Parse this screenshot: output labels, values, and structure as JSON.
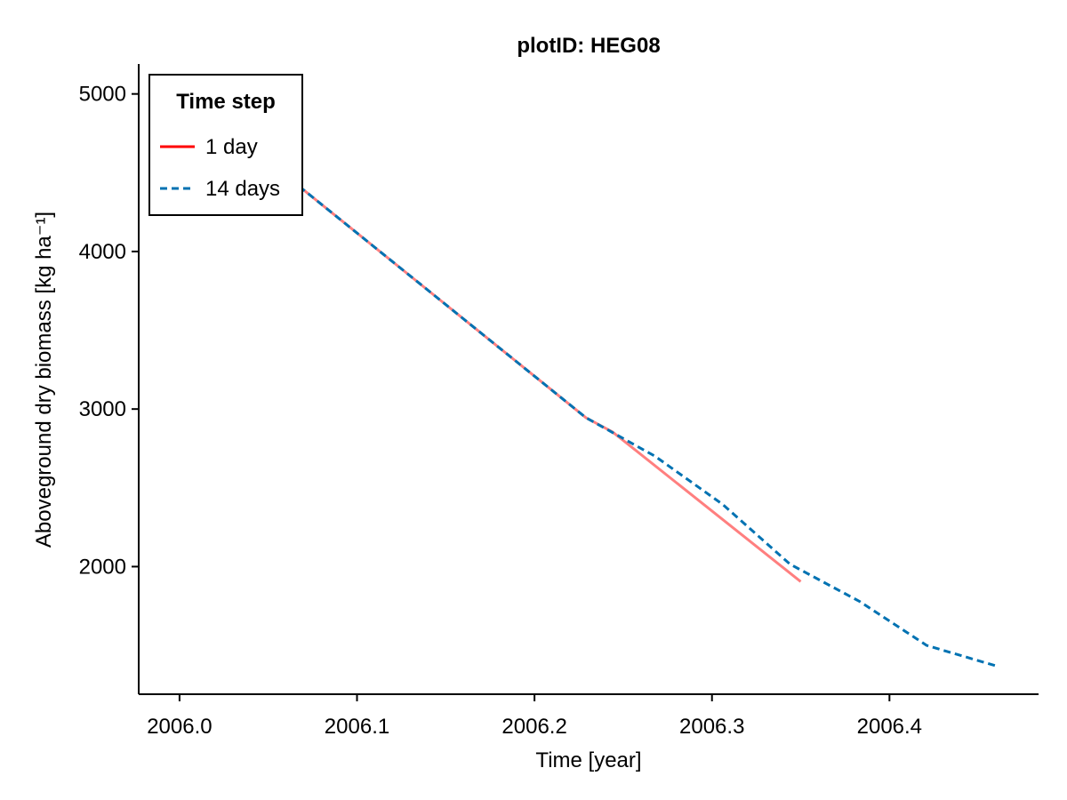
{
  "chart_data": {
    "type": "line",
    "title": "plotID: HEG08",
    "xlabel": "Time [year]",
    "ylabel": "Aboveground dry biomass [kg ha⁻¹]",
    "xlim": [
      2005.977,
      2006.484
    ],
    "ylim": [
      1190,
      5190
    ],
    "xticks": [
      "2006.0",
      "2006.1",
      "2006.2",
      "2006.3",
      "2006.4"
    ],
    "yticks": [
      "2000",
      "3000",
      "4000",
      "5000"
    ],
    "grid": false,
    "legend": {
      "title": "Time step",
      "position": "top-left"
    },
    "series": [
      {
        "name": "1 day",
        "color": "#ff0000",
        "style": "solid",
        "points": [
          [
            2006.0,
            4990
          ],
          [
            2006.07,
            4390
          ],
          [
            2006.229,
            2945
          ],
          [
            2006.244,
            2855
          ],
          [
            2006.35,
            1905
          ]
        ]
      },
      {
        "name": "14 days",
        "color": "#0072b2",
        "style": "dashed",
        "points": [
          [
            2006.0,
            4990
          ],
          [
            2006.07,
            4390
          ],
          [
            2006.229,
            2945
          ],
          [
            2006.268,
            2700
          ],
          [
            2006.306,
            2395
          ],
          [
            2006.344,
            2015
          ],
          [
            2006.383,
            1780
          ],
          [
            2006.421,
            1500
          ],
          [
            2006.46,
            1370
          ]
        ]
      }
    ]
  }
}
